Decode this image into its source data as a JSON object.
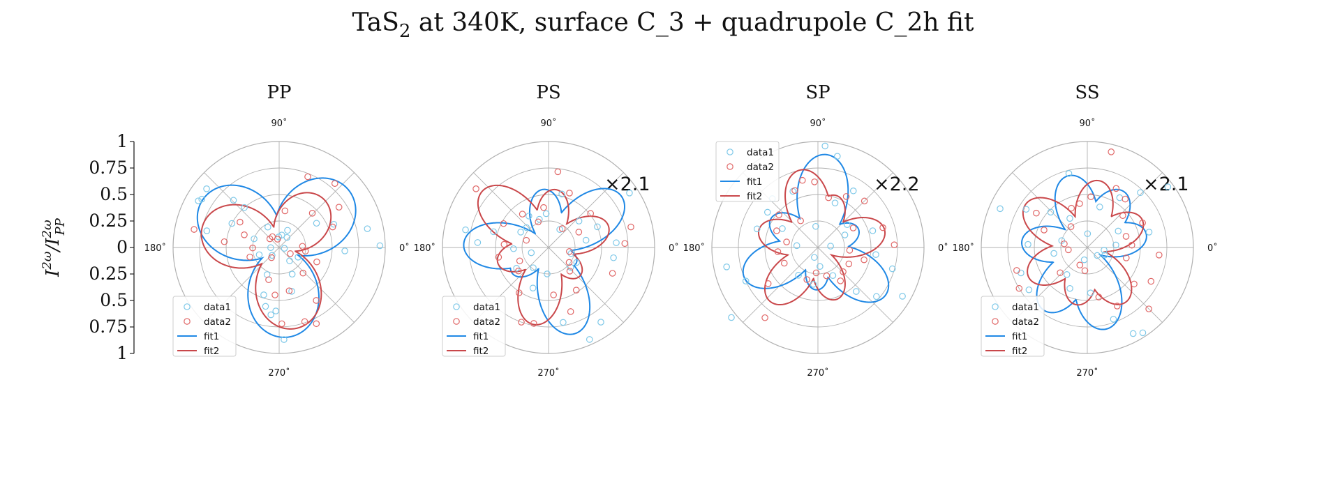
{
  "figure": {
    "title_prefix": "TaS",
    "title_sub": "2",
    "title_suffix": " at 340K, surface C_3 + quadrupole C_2h fit"
  },
  "ylabel": {
    "base": "I",
    "sup": "2ω",
    "sep": "/",
    "base2": "I",
    "sub2": "PP",
    "sup2": "2ω"
  },
  "left_axis": {
    "ticks": [
      "1",
      "0.75",
      "0.5",
      "0.25",
      "0",
      "0.25",
      "0.5",
      "0.75",
      "1"
    ]
  },
  "angle_labels": {
    "a90": "90˚",
    "a180": "180˚",
    "a0": "0˚",
    "a270": "270˚"
  },
  "legend": {
    "data1": "data1",
    "data2": "data2",
    "fit1": "fit1",
    "fit2": "fit2"
  },
  "colors": {
    "fit1": "#1f88e5",
    "fit2": "#c9474a",
    "data1": "#7ec8e8",
    "data2": "#e06666",
    "grid": "#b0b0b0"
  },
  "chart_data": [
    {
      "type": "polar",
      "title": "PP",
      "scale_label": "",
      "rlim": [
        0,
        1
      ],
      "fit1": {
        "petals": [
          [
            40,
            0.85,
            1.9
          ],
          [
            149,
            0.85,
            1.9
          ],
          [
            275,
            0.85,
            1.9
          ]
        ]
      },
      "fit2": {
        "petals": [
          [
            48,
            0.62,
            1.9
          ],
          [
            165,
            0.75,
            1.9
          ],
          [
            282,
            0.78,
            1.9
          ]
        ]
      },
      "data1": [
        [
          1,
          0.95
        ],
        [
          12,
          0.85
        ],
        [
          23,
          0.56
        ],
        [
          33,
          0.42
        ],
        [
          52,
          0.12
        ],
        [
          64,
          0.18
        ],
        [
          78,
          0.12
        ],
        [
          92,
          0.1
        ],
        [
          119,
          0.22
        ],
        [
          131,
          0.5
        ],
        [
          134,
          0.62
        ],
        [
          141,
          0.88
        ],
        [
          148,
          0.86
        ],
        [
          150,
          0.88
        ],
        [
          153,
          0.5
        ],
        [
          161,
          0.25
        ],
        [
          167,
          0.7
        ],
        [
          181,
          0.08
        ],
        [
          200,
          0.2
        ],
        [
          228,
          0.1
        ],
        [
          246,
          0.28
        ],
        [
          252,
          0.47
        ],
        [
          257,
          0.57
        ],
        [
          263,
          0.64
        ],
        [
          267,
          0.6
        ],
        [
          273,
          0.87
        ],
        [
          286,
          0.43
        ],
        [
          296,
          0.28
        ],
        [
          308,
          0.16
        ],
        [
          333,
          0.2
        ],
        [
          351,
          0.05
        ],
        [
          357,
          0.62
        ]
      ],
      "data2": [
        [
          3,
          0.22
        ],
        [
          21,
          0.54
        ],
        [
          34,
          0.68
        ],
        [
          46,
          0.45
        ],
        [
          49,
          0.8
        ],
        [
          68,
          0.72
        ],
        [
          81,
          0.35
        ],
        [
          101,
          0.08
        ],
        [
          122,
          0.12
        ],
        [
          137,
          0.12
        ],
        [
          147,
          0.44
        ],
        [
          160,
          0.35
        ],
        [
          168,
          0.82
        ],
        [
          174,
          0.52
        ],
        [
          181,
          0.25
        ],
        [
          198,
          0.29
        ],
        [
          233,
          0.12
        ],
        [
          252,
          0.32
        ],
        [
          265,
          0.45
        ],
        [
          272,
          0.72
        ],
        [
          283,
          0.42
        ],
        [
          289,
          0.74
        ],
        [
          296,
          0.8
        ],
        [
          305,
          0.61
        ],
        [
          313,
          0.33
        ],
        [
          331,
          0.12
        ],
        [
          339,
          0.38
        ],
        [
          352,
          0.25
        ]
      ]
    },
    {
      "type": "polar",
      "title": "PS",
      "scale_label": "×2.1",
      "rlim": [
        0,
        1
      ],
      "fit1": {
        "petals": [
          [
            35,
            0.84,
            4.5
          ],
          [
            95,
            0.55,
            4.5
          ],
          [
            178,
            0.8,
            4.5
          ],
          [
            215,
            0.42,
            4.5
          ],
          [
            287,
            0.85,
            4.5
          ],
          [
            330,
            0.3,
            4.5
          ]
        ]
      },
      "fit2": {
        "petals": [
          [
            20,
            0.6,
            4.5
          ],
          [
            83,
            0.55,
            4.5
          ],
          [
            140,
            0.82,
            4.5
          ],
          [
            197,
            0.5,
            4.5
          ],
          [
            259,
            0.74,
            4.5
          ],
          [
            318,
            0.4,
            4.5
          ]
        ]
      },
      "data1": [
        [
          4,
          0.64
        ],
        [
          11,
          0.36
        ],
        [
          23,
          0.5
        ],
        [
          34,
          0.92
        ],
        [
          41,
          0.38
        ],
        [
          58,
          0.2
        ],
        [
          76,
          0.52
        ],
        [
          94,
          0.32
        ],
        [
          108,
          0.28
        ],
        [
          122,
          0.35
        ],
        [
          138,
          0.28
        ],
        [
          151,
          0.3
        ],
        [
          164,
          0.54
        ],
        [
          168,
          0.8
        ],
        [
          176,
          0.67
        ],
        [
          182,
          0.33
        ],
        [
          197,
          0.17
        ],
        [
          213,
          0.36
        ],
        [
          233,
          0.24
        ],
        [
          249,
          0.41
        ],
        [
          267,
          0.25
        ],
        [
          281,
          0.72
        ],
        [
          294,
          0.95
        ],
        [
          305,
          0.86
        ],
        [
          318,
          0.28
        ],
        [
          332,
          0.3
        ],
        [
          345,
          0.22
        ],
        [
          351,
          0.62
        ]
      ],
      "data2": [
        [
          3,
          0.72
        ],
        [
          14,
          0.8
        ],
        [
          27,
          0.32
        ],
        [
          39,
          0.51
        ],
        [
          54,
          0.22
        ],
        [
          69,
          0.55
        ],
        [
          83,
          0.72
        ],
        [
          97,
          0.38
        ],
        [
          112,
          0.26
        ],
        [
          128,
          0.4
        ],
        [
          141,
          0.88
        ],
        [
          152,
          0.48
        ],
        [
          162,
          0.22
        ],
        [
          176,
          0.42
        ],
        [
          191,
          0.48
        ],
        [
          205,
          0.3
        ],
        [
          218,
          0.36
        ],
        [
          237,
          0.51
        ],
        [
          250,
          0.75
        ],
        [
          259,
          0.73
        ],
        [
          276,
          0.45
        ],
        [
          289,
          0.64
        ],
        [
          303,
          0.48
        ],
        [
          312,
          0.3
        ],
        [
          324,
          0.24
        ],
        [
          338,
          0.65
        ],
        [
          349,
          0.2
        ]
      ]
    },
    {
      "type": "polar",
      "title": "SP",
      "scale_label": "×2.2",
      "rlim": [
        0,
        1
      ],
      "fit1": {
        "petals": [
          [
            25,
            0.42,
            4.5
          ],
          [
            85,
            0.88,
            4.5
          ],
          [
            148,
            0.52,
            4.5
          ],
          [
            202,
            0.75,
            4.5
          ],
          [
            268,
            0.4,
            4.5
          ],
          [
            325,
            0.78,
            4.5
          ]
        ]
      },
      "fit2": {
        "petals": [
          [
            15,
            0.65,
            4.5
          ],
          [
            70,
            0.52,
            4.5
          ],
          [
            103,
            0.75,
            4.5
          ],
          [
            163,
            0.58,
            4.5
          ],
          [
            228,
            0.68,
            4.5
          ],
          [
            290,
            0.52,
            4.5
          ]
        ]
      },
      "data1": [
        [
          6,
          0.12
        ],
        [
          17,
          0.54
        ],
        [
          25,
          0.28
        ],
        [
          38,
          0.35
        ],
        [
          58,
          0.63
        ],
        [
          69,
          0.45
        ],
        [
          78,
          0.88
        ],
        [
          86,
          0.96
        ],
        [
          96,
          0.2
        ],
        [
          114,
          0.58
        ],
        [
          133,
          0.63
        ],
        [
          145,
          0.58
        ],
        [
          152,
          0.38
        ],
        [
          163,
          0.6
        ],
        [
          175,
          0.2
        ],
        [
          192,
          0.88
        ],
        [
          205,
          0.75
        ],
        [
          219,
          1.05
        ],
        [
          235,
          0.32
        ],
        [
          250,
          0.1
        ],
        [
          263,
          0.35
        ],
        [
          276,
          0.18
        ],
        [
          298,
          0.3
        ],
        [
          311,
          0.55
        ],
        [
          320,
          0.72
        ],
        [
          330,
          0.92
        ],
        [
          344,
          0.73
        ],
        [
          353,
          0.55
        ]
      ],
      "data2": [
        [
          2,
          0.72
        ],
        [
          17,
          0.64
        ],
        [
          29,
          0.38
        ],
        [
          45,
          0.62
        ],
        [
          61,
          0.55
        ],
        [
          78,
          0.48
        ],
        [
          93,
          0.62
        ],
        [
          103,
          0.65
        ],
        [
          112,
          0.58
        ],
        [
          123,
          0.3
        ],
        [
          140,
          0.48
        ],
        [
          158,
          0.42
        ],
        [
          170,
          0.3
        ],
        [
          186,
          0.38
        ],
        [
          205,
          0.35
        ],
        [
          216,
          0.58
        ],
        [
          233,
          0.83
        ],
        [
          251,
          0.32
        ],
        [
          266,
          0.24
        ],
        [
          287,
          0.28
        ],
        [
          304,
          0.38
        ],
        [
          316,
          0.33
        ],
        [
          332,
          0.33
        ],
        [
          345,
          0.45
        ],
        [
          355,
          0.3
        ]
      ]
    },
    {
      "type": "polar",
      "title": "SS",
      "scale_label": "×2.1",
      "rlim": [
        0,
        1
      ],
      "fit1": {
        "petals": [
          [
            13,
            0.57,
            4.5
          ],
          [
            57,
            0.63,
            4.5
          ],
          [
            105,
            0.7,
            4.5
          ],
          [
            175,
            0.62,
            4.5
          ],
          [
            235,
            0.72,
            4.5
          ],
          [
            283,
            0.79,
            4.5
          ]
        ]
      },
      "fit2": {
        "petals": [
          [
            27,
            0.58,
            4.5
          ],
          [
            80,
            0.64,
            4.5
          ],
          [
            145,
            0.71,
            4.5
          ],
          [
            207,
            0.62,
            4.5
          ],
          [
            259,
            0.55,
            4.5
          ],
          [
            305,
            0.63,
            4.5
          ]
        ]
      },
      "data1": [
        [
          5,
          0.27
        ],
        [
          14,
          0.6
        ],
        [
          28,
          0.33
        ],
        [
          37,
          0.95
        ],
        [
          46,
          0.72
        ],
        [
          57,
          0.56
        ],
        [
          73,
          0.4
        ],
        [
          89,
          0.13
        ],
        [
          104,
          0.72
        ],
        [
          121,
          0.32
        ],
        [
          136,
          0.48
        ],
        [
          148,
          0.68
        ],
        [
          156,
          0.9
        ],
        [
          165,
          0.25
        ],
        [
          177,
          0.56
        ],
        [
          190,
          0.32
        ],
        [
          201,
          0.67
        ],
        [
          216,
          0.68
        ],
        [
          233,
          0.32
        ],
        [
          247,
          0.42
        ],
        [
          256,
          0.12
        ],
        [
          274,
          0.43
        ],
        [
          290,
          0.72
        ],
        [
          298,
          0.92
        ],
        [
          303,
          0.96
        ],
        [
          321,
          0.12
        ],
        [
          337,
          0.18
        ],
        [
          351,
          0.16
        ]
      ],
      "data2": [
        [
          3,
          0.42
        ],
        [
          16,
          0.38
        ],
        [
          24,
          0.57
        ],
        [
          42,
          0.45
        ],
        [
          52,
          0.58
        ],
        [
          64,
          0.62
        ],
        [
          76,
          0.93
        ],
        [
          86,
          0.48
        ],
        [
          100,
          0.42
        ],
        [
          112,
          0.4
        ],
        [
          128,
          0.25
        ],
        [
          146,
          0.58
        ],
        [
          158,
          0.44
        ],
        [
          171,
          0.22
        ],
        [
          187,
          0.18
        ],
        [
          198,
          0.7
        ],
        [
          211,
          0.75
        ],
        [
          223,
          0.35
        ],
        [
          247,
          0.18
        ],
        [
          264,
          0.22
        ],
        [
          283,
          0.48
        ],
        [
          297,
          0.62
        ],
        [
          315,
          0.82
        ],
        [
          322,
          0.56
        ],
        [
          332,
          0.68
        ],
        [
          345,
          0.38
        ],
        [
          354,
          0.68
        ]
      ]
    }
  ]
}
